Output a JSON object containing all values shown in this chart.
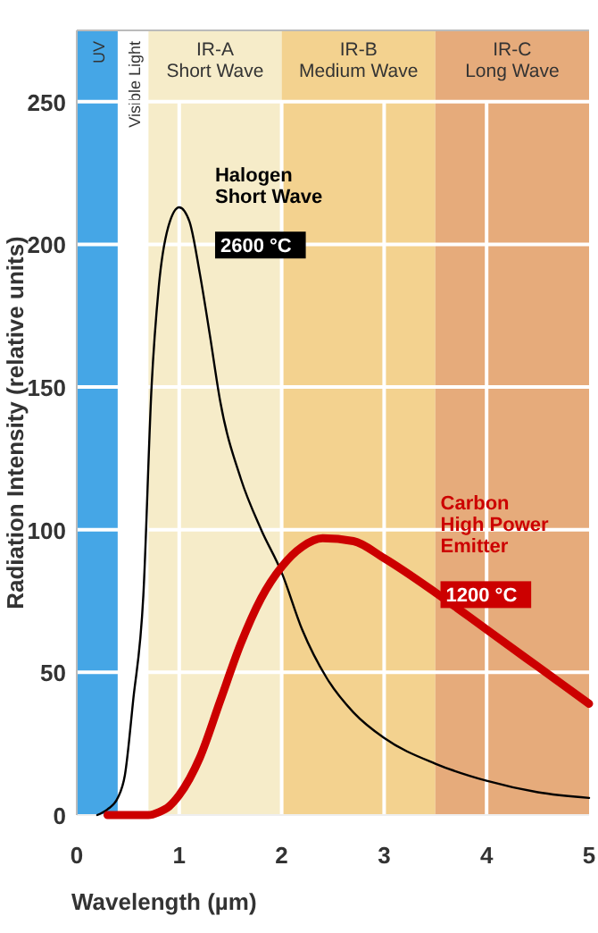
{
  "chart_data": {
    "type": "line",
    "xlabel": "Wavelength (µm)",
    "ylabel": "Radiation Intensity (relative units)",
    "xlim": [
      0,
      5
    ],
    "ylim": [
      0,
      275
    ],
    "xticks": [
      0,
      1,
      2,
      3,
      4,
      5
    ],
    "yticks": [
      0,
      50,
      100,
      150,
      200,
      250
    ],
    "grid": true,
    "bands": [
      {
        "axis": "x",
        "from": 0,
        "to": 0.4,
        "label": "UV",
        "color": "#45a6e6"
      },
      {
        "axis": "x",
        "from": 0.4,
        "to": 0.7,
        "label": "Visible Light",
        "color": "#ffffff"
      },
      {
        "axis": "x",
        "from": 0.7,
        "to": 2.0,
        "label": "IR-A\nShort Wave",
        "color": "#f6ecc9"
      },
      {
        "axis": "x",
        "from": 2.0,
        "to": 3.5,
        "label": "IR-B\nMedium Wave",
        "color": "#f3d28f"
      },
      {
        "axis": "x",
        "from": 3.5,
        "to": 5.0,
        "label": "IR-C\nLong Wave",
        "color": "#e6ab7b"
      }
    ],
    "series": [
      {
        "name": "Halogen\nShort Wave",
        "color": "#000000",
        "x": [
          0.2,
          0.3,
          0.4,
          0.47,
          0.55,
          0.65,
          0.73,
          0.8,
          0.9,
          1.0,
          1.1,
          1.2,
          1.3,
          1.4,
          1.6,
          1.8,
          2.0,
          2.2,
          2.44,
          2.7,
          3.0,
          3.5,
          4.0,
          4.5,
          5.0
        ],
        "values": [
          0,
          2,
          6,
          14,
          40,
          77,
          150,
          185,
          207,
          213,
          208,
          190,
          168,
          145,
          118,
          100,
          85,
          65,
          48,
          36,
          27,
          18,
          12,
          8,
          6
        ]
      },
      {
        "name": "Carbon\nHigh Power\nEmitter",
        "color": "#cc0000",
        "x": [
          0.3,
          0.5,
          0.7,
          0.8,
          0.9,
          1.0,
          1.2,
          1.4,
          1.6,
          1.8,
          2.0,
          2.2,
          2.4,
          2.7,
          3.0,
          3.5,
          4.0,
          4.5,
          5.0
        ],
        "values": [
          0,
          0,
          0,
          1,
          3,
          7,
          20,
          40,
          60,
          76,
          87,
          94,
          97,
          96,
          90,
          78,
          65,
          52,
          39
        ]
      }
    ],
    "annotations": [
      "2600 °C",
      "1200 °C"
    ]
  }
}
